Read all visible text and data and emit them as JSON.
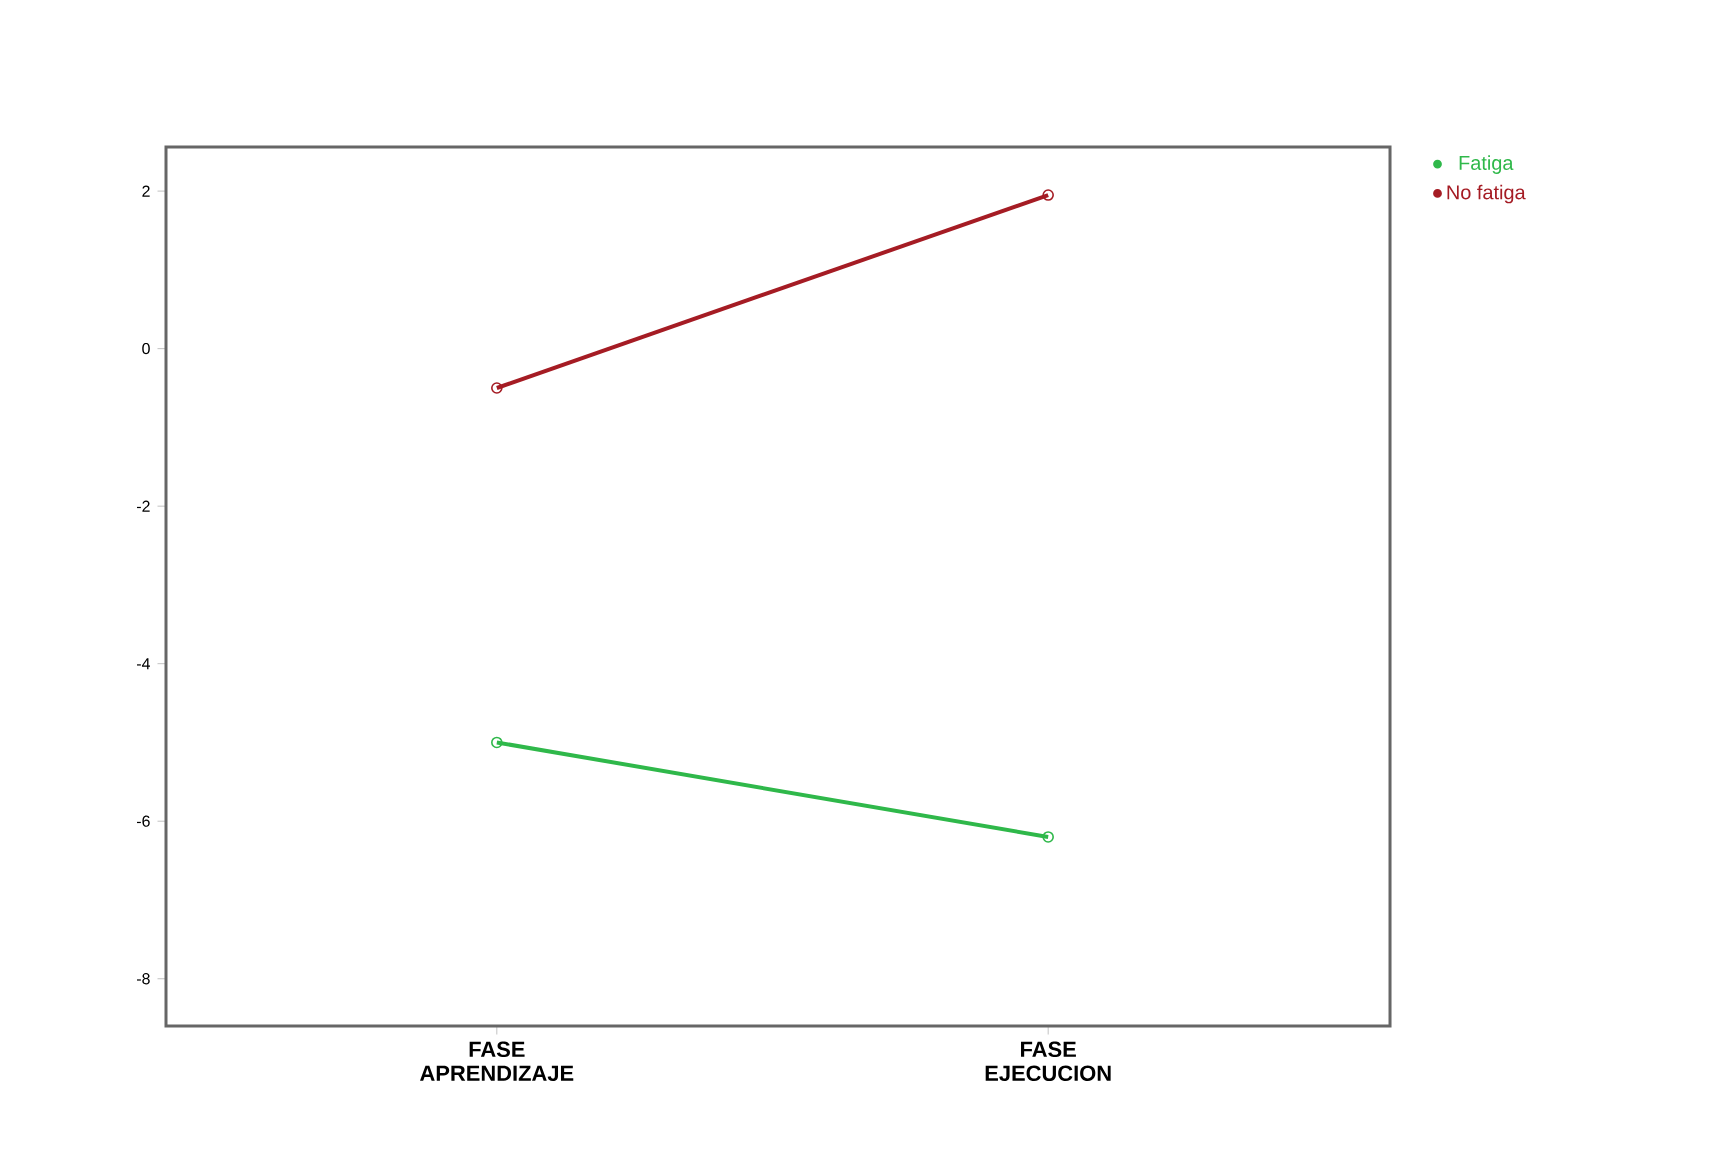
{
  "chart_data": {
    "type": "line",
    "categories": [
      "FASE APRENDIZAJE",
      "FASE EJECUCION"
    ],
    "series": [
      {
        "name": "Fatiga",
        "color": "#2fb84a",
        "values": [
          -5.0,
          -6.2
        ]
      },
      {
        "name": "No fatiga",
        "color": "#a51c24",
        "values": [
          -0.5,
          1.95
        ]
      }
    ],
    "ylim": [
      -8.6,
      2.56
    ],
    "yticks": [
      -8,
      -6,
      -4,
      -2,
      0,
      2
    ],
    "marker": "circle",
    "line_style": "solid",
    "legend": "top right",
    "grid": false
  }
}
